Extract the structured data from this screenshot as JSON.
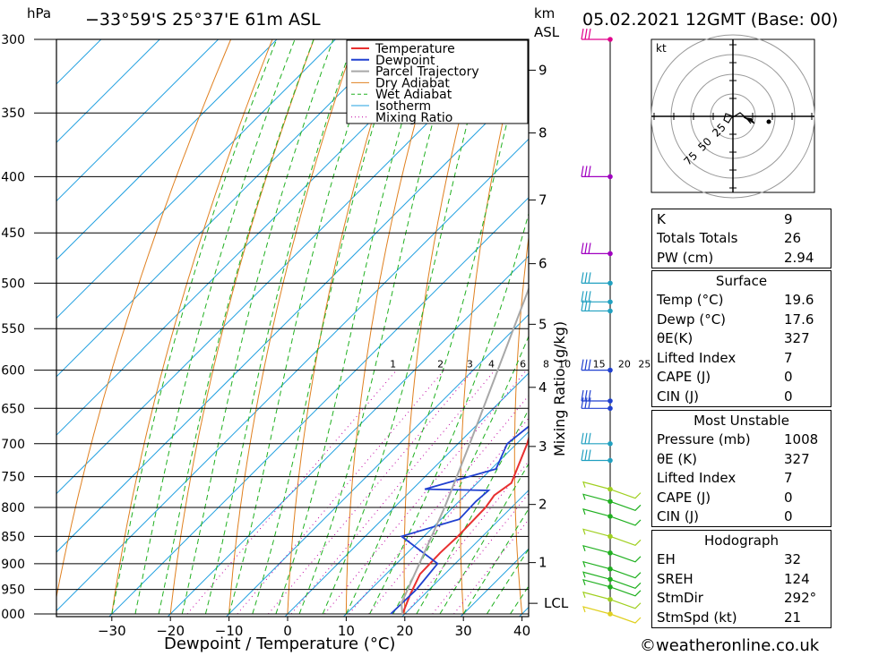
{
  "header": {
    "pressure_unit": "hPa",
    "location": "−33°59'S  25°37'E  61m  ASL",
    "km_label": "km",
    "asl_label": "ASL",
    "datetime": "05.02.2021  12GMT  (Base: 00)"
  },
  "colors": {
    "temperature": "#e83030",
    "dewpoint": "#2040d0",
    "parcel": "#a8a8a8",
    "dry_adiabat": "#e08020",
    "wet_adiabat": "#20b020",
    "isotherm": "#20a0e0",
    "mixing_ratio": "#c000a0"
  },
  "chart_data": {
    "type": "line",
    "title": "",
    "xlabel": "Dewpoint / Temperature (°C)",
    "ylabel": "",
    "y_axis_unit": "hPa",
    "y_scale": "log",
    "xlim": [
      -40,
      40
    ],
    "ylim": [
      1000,
      300
    ],
    "x_ticks": [
      -30,
      -20,
      -10,
      0,
      10,
      20,
      30,
      40
    ],
    "pressure_ticks": [
      300,
      350,
      400,
      450,
      500,
      550,
      600,
      650,
      700,
      750,
      800,
      850,
      900,
      950,
      1000
    ],
    "height_label": "km ASL",
    "height_ticks": [
      {
        "km": 1,
        "p": 898
      },
      {
        "km": 2,
        "p": 795
      },
      {
        "km": 3,
        "p": 704
      },
      {
        "km": 4,
        "p": 622
      },
      {
        "km": 5,
        "p": 545
      },
      {
        "km": 6,
        "p": 480
      },
      {
        "km": 7,
        "p": 420
      },
      {
        "km": 8,
        "p": 365
      },
      {
        "km": 9,
        "p": 320
      }
    ],
    "lcl": {
      "label": "LCL",
      "p": 978
    },
    "mixing_ratio_axis_label": "Mixing Ratio (g/kg)",
    "mixing_ratio_lines": [
      1,
      2,
      3,
      4,
      6,
      8,
      10,
      15,
      20,
      25
    ],
    "legend": {
      "position": "top-center",
      "entries": [
        "Temperature",
        "Dewpoint",
        "Parcel Trajectory",
        "Dry Adiabat",
        "Wet Adiabat",
        "Isotherm",
        "Mixing Ratio"
      ]
    },
    "series": [
      {
        "name": "Temperature",
        "points": [
          [
            1000,
            19.6
          ],
          [
            960,
            17.6
          ],
          [
            920,
            15.8
          ],
          [
            880,
            15.6
          ],
          [
            850,
            15.8
          ],
          [
            800,
            15.6
          ],
          [
            780,
            15.0
          ],
          [
            760,
            15.8
          ],
          [
            700,
            11.8
          ],
          [
            650,
            7.5
          ],
          [
            610,
            4.9
          ],
          [
            580,
            6.5
          ],
          [
            550,
            8.5
          ],
          [
            520,
            6.8
          ],
          [
            500,
            5.2
          ],
          [
            475,
            3.9
          ],
          [
            450,
            1.0
          ],
          [
            420,
            -3.3
          ],
          [
            405,
            -5.8
          ],
          [
            385,
            -6.5
          ],
          [
            360,
            -10.0
          ],
          [
            330,
            -15.5
          ],
          [
            300,
            -21.0
          ]
        ]
      },
      {
        "name": "Dewpoint",
        "points": [
          [
            1000,
            17.6
          ],
          [
            950,
            17.8
          ],
          [
            900,
            17.0
          ],
          [
            850,
            6.2
          ],
          [
            820,
            13.1
          ],
          [
            790,
            12.9
          ],
          [
            772,
            13.2
          ],
          [
            770,
            2.1
          ],
          [
            738,
            10.8
          ],
          [
            700,
            8.4
          ],
          [
            665,
            9.4
          ],
          [
            625,
            8.5
          ],
          [
            600,
            4.9
          ],
          [
            570,
            1.0
          ],
          [
            532,
            -3.0
          ],
          [
            508,
            -4.2
          ],
          [
            505,
            1.9
          ],
          [
            495,
            0.3
          ],
          [
            470,
            -5.9
          ],
          [
            430,
            -3.4
          ],
          [
            410,
            -6.4
          ],
          [
            395,
            -12.0
          ],
          [
            378,
            -30.0
          ],
          [
            300,
            -38.5
          ]
        ]
      },
      {
        "name": "Parcel Trajectory",
        "points": [
          [
            1000,
            19.6
          ],
          [
            978,
            17.6
          ],
          [
            900,
            13.9
          ],
          [
            800,
            8.6
          ],
          [
            700,
            2.0
          ],
          [
            600,
            -5.8
          ],
          [
            500,
            -15.0
          ],
          [
            400,
            -26.0
          ],
          [
            300,
            -41.0
          ]
        ]
      }
    ],
    "wind_barbs": [
      {
        "p": 300,
        "color": "#e0008c"
      },
      {
        "p": 400,
        "color": "#a000c0"
      },
      {
        "p": 470,
        "color": "#a000c0"
      },
      {
        "p": 500,
        "color": "#20a0c0"
      },
      {
        "p": 520,
        "color": "#20a0c0"
      },
      {
        "p": 530,
        "color": "#20a0c0"
      },
      {
        "p": 600,
        "color": "#2040d0"
      },
      {
        "p": 640,
        "color": "#2040d0"
      },
      {
        "p": 650,
        "color": "#2040d0"
      },
      {
        "p": 700,
        "color": "#20a0c0"
      },
      {
        "p": 725,
        "color": "#20a0c0"
      },
      {
        "p": 770,
        "color": "#a0d020"
      },
      {
        "p": 790,
        "color": "#20b020"
      },
      {
        "p": 815,
        "color": "#20b020"
      },
      {
        "p": 850,
        "color": "#a0d020"
      },
      {
        "p": 880,
        "color": "#20b020"
      },
      {
        "p": 910,
        "color": "#20b020"
      },
      {
        "p": 930,
        "color": "#20b020"
      },
      {
        "p": 945,
        "color": "#20b020"
      },
      {
        "p": 970,
        "color": "#a0d020"
      },
      {
        "p": 1000,
        "color": "#e0d020"
      }
    ]
  },
  "hodograph": {
    "unit_label": "kt",
    "ring_labels": [
      "25",
      "50",
      "75"
    ]
  },
  "indices": {
    "general": [
      {
        "label": "K",
        "value": "9"
      },
      {
        "label": "Totals Totals",
        "value": "26"
      },
      {
        "label": "PW (cm)",
        "value": "2.94"
      }
    ],
    "surface_title": "Surface",
    "surface": [
      {
        "label": "Temp (°C)",
        "value": "19.6"
      },
      {
        "label": "Dewp (°C)",
        "value": "17.6"
      },
      {
        "label": "θE(K)",
        "value": "327"
      },
      {
        "label": "Lifted Index",
        "value": "7"
      },
      {
        "label": "CAPE (J)",
        "value": "0"
      },
      {
        "label": "CIN (J)",
        "value": "0"
      }
    ],
    "most_unstable_title": "Most Unstable",
    "most_unstable": [
      {
        "label": "Pressure (mb)",
        "value": "1008"
      },
      {
        "label": "θE (K)",
        "value": "327"
      },
      {
        "label": "Lifted Index",
        "value": "7"
      },
      {
        "label": "CAPE (J)",
        "value": "0"
      },
      {
        "label": "CIN (J)",
        "value": "0"
      }
    ],
    "hodograph_title": "Hodograph",
    "hodograph": [
      {
        "label": "EH",
        "value": "32"
      },
      {
        "label": "SREH",
        "value": "124"
      },
      {
        "label": "StmDir",
        "value": "292°"
      },
      {
        "label": "StmSpd (kt)",
        "value": "21"
      }
    ]
  },
  "footer": {
    "credit": "©weatheronline.co.uk"
  }
}
